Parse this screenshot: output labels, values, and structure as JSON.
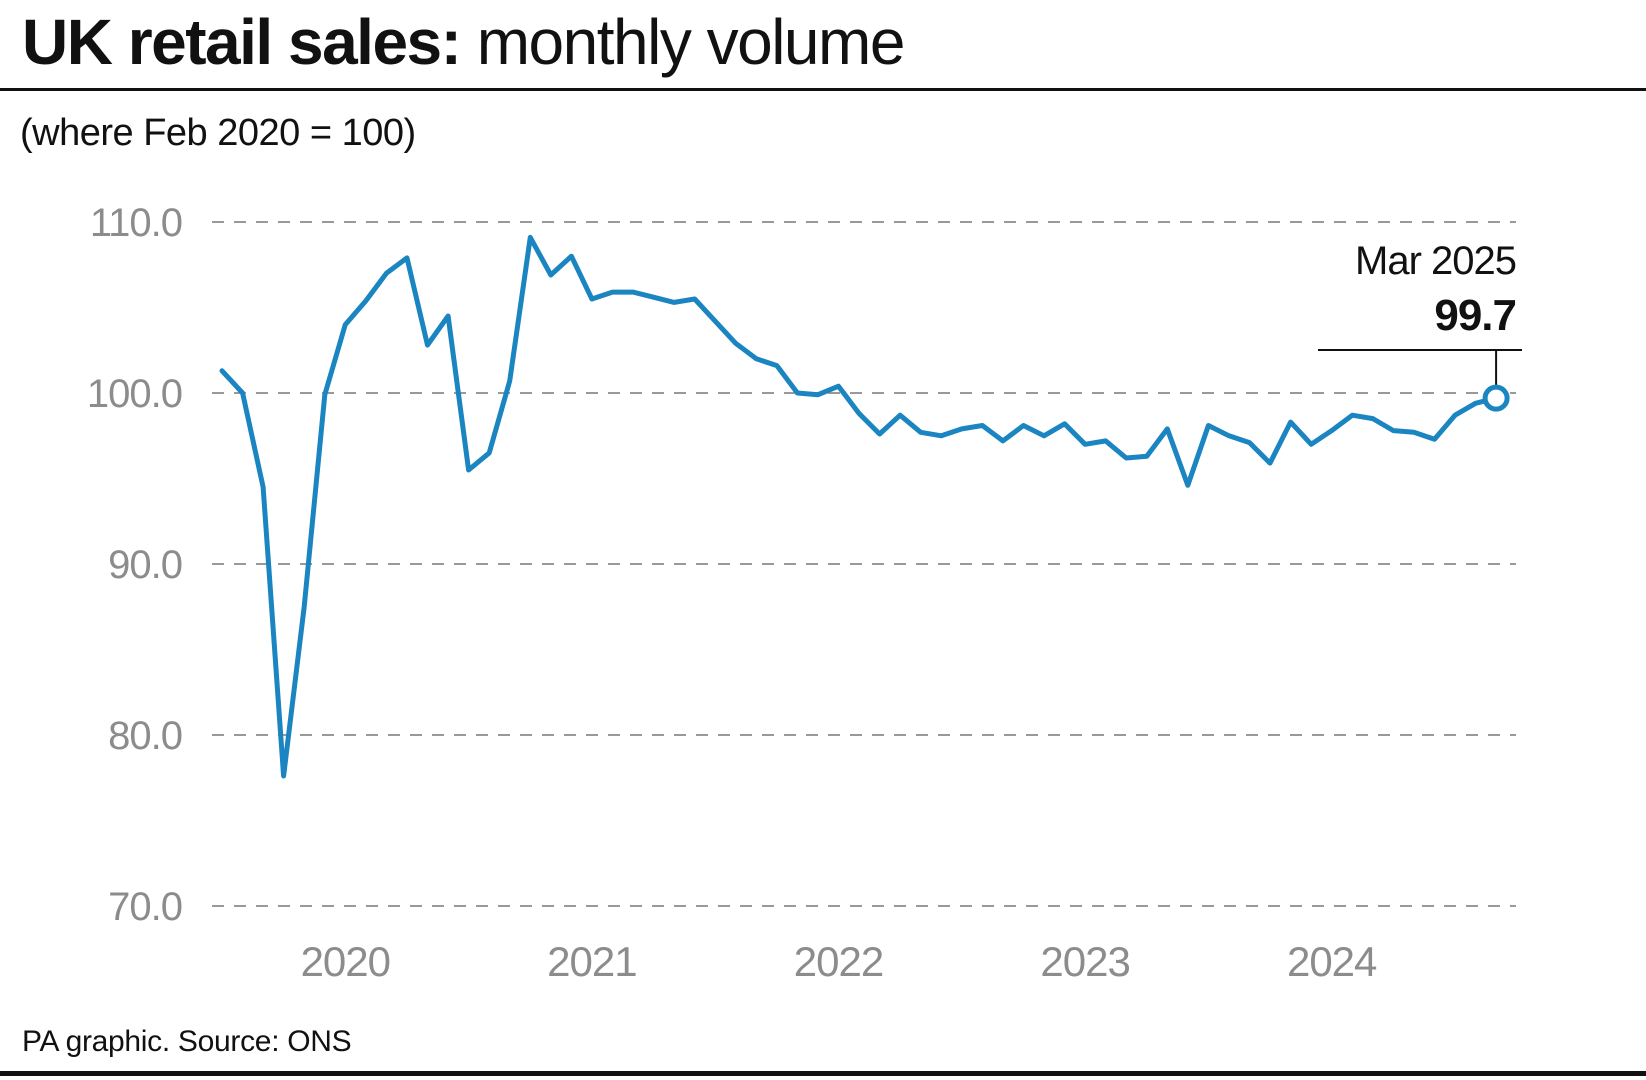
{
  "header": {
    "title_bold": "UK retail sales:",
    "title_regular": " monthly volume",
    "subtitle": "(where Feb 2020 = 100)"
  },
  "footer": {
    "source": "PA graphic. Source: ONS"
  },
  "colors": {
    "line": "#1a85c1",
    "grid": "#999999",
    "tick_text": "#8c8c8c",
    "text": "#111111"
  },
  "chart_data": {
    "type": "line",
    "title": "UK retail sales: monthly volume",
    "subtitle": "(where Feb 2020 = 100)",
    "xlabel": "",
    "ylabel": "",
    "ylim": [
      70,
      110
    ],
    "yticks": [
      "110.0",
      "100.0",
      "90.0",
      "80.0",
      "70.0"
    ],
    "xticks": [
      {
        "label": "2020",
        "x": "2020-07"
      },
      {
        "label": "2021",
        "x": "2021-07"
      },
      {
        "label": "2022",
        "x": "2022-07"
      },
      {
        "label": "2023",
        "x": "2023-07"
      },
      {
        "label": "2024",
        "x": "2024-07"
      }
    ],
    "grid": true,
    "series": [
      {
        "name": "",
        "x": [
          "2020-01",
          "2020-02",
          "2020-03",
          "2020-04",
          "2020-05",
          "2020-06",
          "2020-07",
          "2020-08",
          "2020-09",
          "2020-10",
          "2020-11",
          "2020-12",
          "2021-01",
          "2021-02",
          "2021-03",
          "2021-04",
          "2021-05",
          "2021-06",
          "2021-07",
          "2021-08",
          "2021-09",
          "2021-10",
          "2021-11",
          "2021-12",
          "2022-01",
          "2022-02",
          "2022-03",
          "2022-04",
          "2022-05",
          "2022-06",
          "2022-07",
          "2022-08",
          "2022-09",
          "2022-10",
          "2022-11",
          "2022-12",
          "2023-01",
          "2023-02",
          "2023-03",
          "2023-04",
          "2023-05",
          "2023-06",
          "2023-07",
          "2023-08",
          "2023-09",
          "2023-10",
          "2023-11",
          "2023-12",
          "2024-01",
          "2024-02",
          "2024-03",
          "2024-04",
          "2024-05",
          "2024-06",
          "2024-07",
          "2024-08",
          "2024-09",
          "2024-10",
          "2024-11",
          "2024-12",
          "2025-01",
          "2025-02",
          "2025-03"
        ],
        "values": [
          101.3,
          100.0,
          94.5,
          77.6,
          87.5,
          99.9,
          104.0,
          105.4,
          107.0,
          107.9,
          102.8,
          104.5,
          95.5,
          96.5,
          100.7,
          109.1,
          106.9,
          108.0,
          105.5,
          105.9,
          105.9,
          105.6,
          105.3,
          105.5,
          104.2,
          102.9,
          102.0,
          101.6,
          100.0,
          99.9,
          100.4,
          98.8,
          97.6,
          98.7,
          97.7,
          97.5,
          97.9,
          98.1,
          97.2,
          98.1,
          97.5,
          98.2,
          97.0,
          97.2,
          96.2,
          96.3,
          97.9,
          94.6,
          98.1,
          97.5,
          97.1,
          95.9,
          98.3,
          97.0,
          97.8,
          98.7,
          98.5,
          97.8,
          97.7,
          97.3,
          98.7,
          99.4,
          99.7
        ]
      }
    ],
    "annotations": [
      {
        "x": "2025-03",
        "label": "Mar 2025",
        "value_label": "99.7"
      }
    ]
  }
}
